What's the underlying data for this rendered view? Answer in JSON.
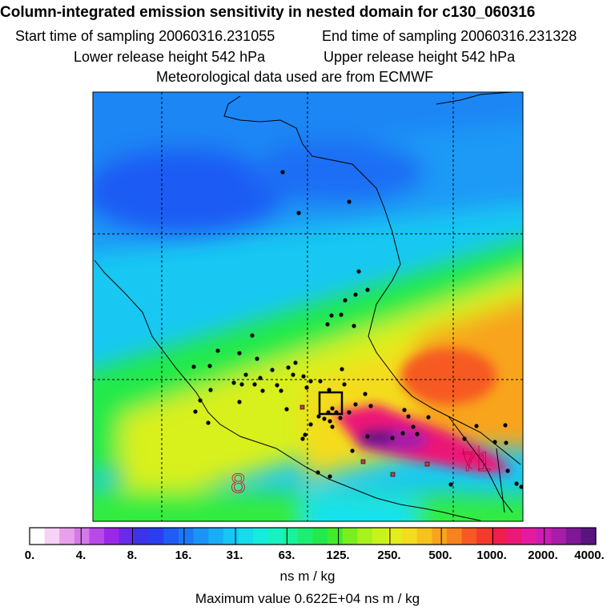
{
  "header": {
    "title": "Column-integrated emission sensitivity in nested domain for c130_060316",
    "start_sampling": "Start time of sampling 20060316.231055",
    "end_sampling": "End time of sampling 20060316.231328",
    "lower_release": "Lower release height  542 hPa",
    "upper_release": "Upper release height  542 hPa",
    "met_data": "Meteorological data used are from ECMWF"
  },
  "map": {
    "contour_labels": [
      "8",
      "71"
    ]
  },
  "colorbar": {
    "tick_labels": [
      "0.",
      "4.",
      "8.",
      "16.",
      "31.",
      "63.",
      "125.",
      "250.",
      "500.",
      "1000.",
      "2000.",
      "4000."
    ],
    "units": "ns m / kg",
    "colors": [
      "#ffffff",
      "#f6d2f6",
      "#e8a0ec",
      "#d27be8",
      "#b949e8",
      "#9b27e8",
      "#6a2be8",
      "#3c34e8",
      "#2a3ef0",
      "#1f5cf4",
      "#1c78f6",
      "#1a94f6",
      "#18aef6",
      "#17c6f4",
      "#16dcec",
      "#16ecde",
      "#16f2c0",
      "#18f29a",
      "#1cee72",
      "#22ea4a",
      "#40ec2a",
      "#78f01e",
      "#a6f21a",
      "#c8f21c",
      "#e4ec1e",
      "#f4dc1e",
      "#f8c21e",
      "#f8a41e",
      "#f8821e",
      "#f65a22",
      "#f43a2c",
      "#f01e4a",
      "#ec1878",
      "#e41aa0",
      "#cc1cb4",
      "#a81ca8",
      "#7e1896",
      "#5a1480"
    ]
  },
  "footer": {
    "max_value": "Maximum value  0.622E+04 ns m / kg"
  }
}
